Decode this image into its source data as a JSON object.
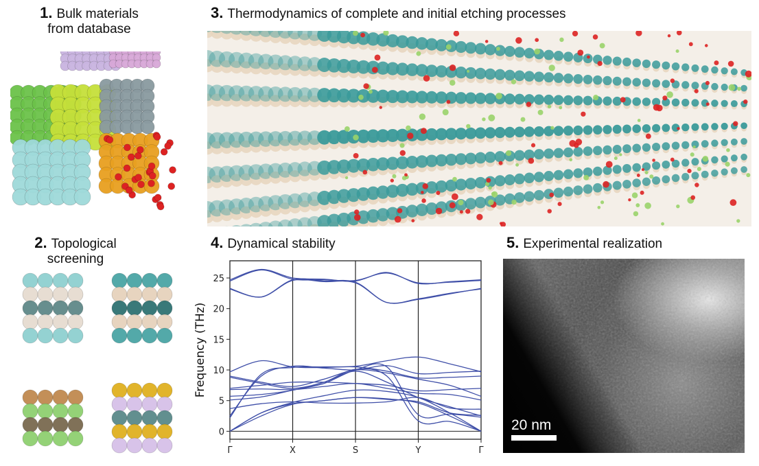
{
  "panels": [
    {
      "number": "1.",
      "title_line1": "Bulk materials",
      "title_line2": "from database"
    },
    {
      "number": "2.",
      "title_line1": "Topological",
      "title_line2": "screening"
    },
    {
      "number": "3.",
      "title": "Thermodynamics of complete and initial etching processes"
    },
    {
      "number": "4.",
      "title": "Dynamical stability"
    },
    {
      "number": "5.",
      "title": "Experimental realization",
      "scale_bar": "20 nm"
    }
  ],
  "colors": {
    "band": "#3f4fa8",
    "teal": "#3a9a9a",
    "beige": "#e8d6c0",
    "red": "#dd2222",
    "green": "#9ad36a"
  },
  "chart_data": {
    "type": "line",
    "title": "Dynamical stability",
    "xlabel": "",
    "ylabel": "Frequency (THz)",
    "ylim": [
      -1.3,
      27.8
    ],
    "yticks": [
      "0",
      "5",
      "10",
      "15",
      "20",
      "25"
    ],
    "ytick_values": [
      0,
      5,
      10,
      15,
      20,
      25
    ],
    "high_symmetry_labels": [
      "Γ",
      "X",
      "S",
      "Y",
      "Γ"
    ],
    "x": [
      0,
      0.5,
      1,
      1.5,
      2,
      2.5,
      3,
      3.5,
      4
    ],
    "series": [
      {
        "name": "band1",
        "values": [
          24.5,
          26.3,
          24.8,
          24.7,
          24.6,
          25.8,
          24.2,
          24.3,
          24.6
        ]
      },
      {
        "name": "band2",
        "values": [
          24.7,
          26.4,
          25.0,
          24.8,
          24.5,
          25.9,
          24.1,
          24.4,
          24.7
        ]
      },
      {
        "name": "band3",
        "values": [
          23.2,
          21.9,
          24.6,
          24.4,
          24.2,
          21.0,
          21.5,
          22.4,
          23.3
        ]
      },
      {
        "name": "band4",
        "values": [
          23.3,
          21.9,
          24.7,
          24.5,
          24.3,
          21.0,
          21.6,
          22.5,
          23.2
        ]
      },
      {
        "name": "band5",
        "values": [
          2.2,
          9.3,
          10.4,
          10.5,
          10.6,
          11.5,
          12.1,
          11.0,
          9.7
        ]
      },
      {
        "name": "band6",
        "values": [
          2.5,
          9.0,
          10.6,
          10.3,
          10.0,
          10.7,
          9.4,
          9.6,
          9.8
        ]
      },
      {
        "name": "band7",
        "values": [
          9.7,
          11.5,
          10.5,
          10.4,
          10.5,
          9.8,
          8.7,
          8.8,
          9.0
        ]
      },
      {
        "name": "band8",
        "values": [
          9.0,
          8.0,
          7.3,
          8.5,
          10.0,
          9.5,
          8.5,
          7.5,
          5.7
        ]
      },
      {
        "name": "band9",
        "values": [
          8.8,
          7.8,
          7.0,
          8.0,
          9.8,
          8.0,
          5.5,
          4.0,
          2.5
        ]
      },
      {
        "name": "band10",
        "values": [
          7.0,
          7.5,
          8.0,
          8.0,
          7.8,
          7.5,
          6.6,
          6.8,
          7.0
        ]
      },
      {
        "name": "band11",
        "values": [
          6.8,
          6.9,
          6.8,
          7.3,
          7.8,
          7.0,
          6.2,
          6.0,
          5.1
        ]
      },
      {
        "name": "band12",
        "values": [
          5.7,
          6.0,
          6.7,
          8.0,
          10.1,
          9.0,
          1.7,
          1.6,
          0.0
        ]
      },
      {
        "name": "band13",
        "values": [
          5.1,
          5.6,
          6.7,
          7.8,
          10.0,
          10.5,
          2.7,
          2.8,
          2.3
        ]
      },
      {
        "name": "band14",
        "values": [
          3.7,
          4.5,
          4.8,
          4.6,
          4.6,
          4.8,
          5.5,
          3.8,
          3.6
        ]
      },
      {
        "name": "band15",
        "values": [
          0.0,
          2.5,
          4.4,
          5.0,
          5.5,
          5.2,
          4.8,
          3.0,
          2.6
        ]
      },
      {
        "name": "band16",
        "values": [
          0.0,
          3.0,
          4.5,
          5.0,
          5.5,
          5.3,
          4.6,
          2.5,
          0.0
        ]
      },
      {
        "name": "band17",
        "values": [
          0.0,
          3.0,
          4.7,
          5.8,
          6.7,
          6.5,
          5.5,
          3.0,
          0.0
        ]
      }
    ]
  }
}
